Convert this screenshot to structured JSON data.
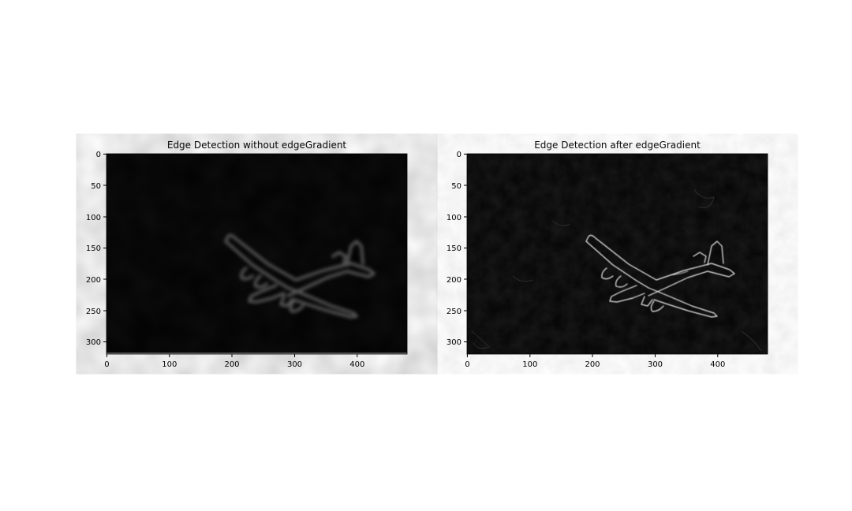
{
  "figure": {
    "panels": [
      {
        "id": "left",
        "title": "Edge Detection without edgeGradient",
        "xticks": [
          "0",
          "100",
          "200",
          "300",
          "400"
        ],
        "yticks": [
          "0",
          "50",
          "100",
          "150",
          "200",
          "250",
          "300"
        ],
        "style": "blurred"
      },
      {
        "id": "right",
        "title": "Edge Detection after edgeGradient",
        "xticks": [
          "0",
          "100",
          "200",
          "300",
          "400"
        ],
        "yticks": [
          "0",
          "50",
          "100",
          "150",
          "200",
          "250",
          "300"
        ],
        "style": "sharp"
      }
    ],
    "image_extent": {
      "width": 480,
      "height": 320
    },
    "colors": {
      "background": "#000000",
      "edge_blurred": "#555555",
      "edge_sharp": "#e8e8e8"
    }
  }
}
